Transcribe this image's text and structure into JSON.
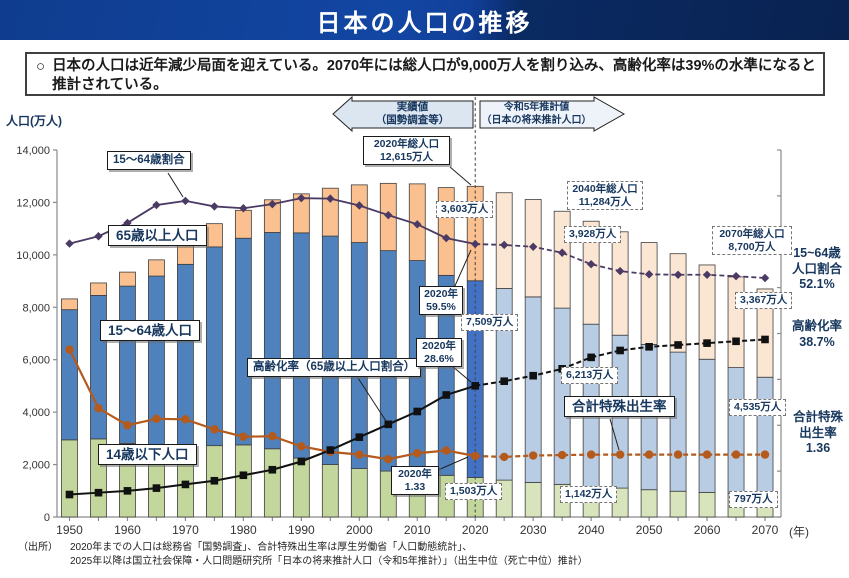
{
  "header": {
    "title": "日本の人口の推移"
  },
  "summary": {
    "bullet": "○",
    "text": "日本の人口は近年減少局面を迎えている。2070年には総人口が9,000万人を割り込み、高齢化率は39%の水準になると推計されている。"
  },
  "banners": {
    "actual": "実績値\n（国勢調査等）",
    "projection": "令和5年推計値\n（日本の将来推計人口）"
  },
  "axis_title": "人口(万人)",
  "year_unit": "(年)",
  "callouts": {
    "pop2020": "2020年総人口\n12,615万人",
    "pop2040": "2040年総人口\n11,284万人",
    "pop2070": "2070年総人口\n8,700万人",
    "ratio_label": "15～64歳割合",
    "senior_label": "65歳以上人口",
    "working_label": "15～64歳人口",
    "under14_label": "14歳以下人口",
    "aging_label": "高齢化率（65歳以上人口割合）",
    "tfr_label": "合計特殊出生率",
    "r2020_ratio": "2020年\n59.5%",
    "r2020_aging": "2020年\n28.6%",
    "r2020_tfr": "2020年\n1.33",
    "v3603": "3,603万人",
    "v3928": "3,928万人",
    "v3367": "3,367万人",
    "v7509": "7,509万人",
    "v6213": "6,213万人",
    "v4535": "4,535万人",
    "v1503": "1,503万人",
    "v1142": "1,142万人",
    "v797": "797万人"
  },
  "side_labels": {
    "ratio": "15~64歳\n人口割合\n52.1%",
    "aging": "高齢化率\n38.7%",
    "tfr": "合計特殊\n出生率\n1.36"
  },
  "footer": {
    "label": "（出所）",
    "line1": "2020年までの人口は総務省「国勢調査」、合計特殊出生率は厚生労働省「人口動態統計」、",
    "line2": "2025年以降は国立社会保障・人口問題研究所「日本の将来推計人口（令和5年推計）」（出生中位（死亡中位）推計）"
  },
  "chart_data": {
    "type": "combo-stacked-bar-line",
    "title": "日本の人口の推移",
    "ylabel": "人口(万人)",
    "ylim": [
      0,
      14000
    ],
    "y_ticks": [
      "0",
      "2,000",
      "4,000",
      "6,000",
      "8,000",
      "10,000",
      "12,000",
      "14,000"
    ],
    "x_tick_labels": [
      "1950",
      "1960",
      "1970",
      "1980",
      "1990",
      "2000",
      "2010",
      "2020",
      "2030",
      "2040",
      "2050",
      "2060",
      "2070"
    ],
    "years": [
      1950,
      1955,
      1960,
      1965,
      1970,
      1975,
      1980,
      1985,
      1990,
      1995,
      2000,
      2005,
      2010,
      2015,
      2020,
      2025,
      2030,
      2035,
      2040,
      2045,
      2050,
      2055,
      2060,
      2065,
      2070
    ],
    "projection_from_index": 14,
    "percent_scale": 175,
    "tfr_scale": 1750,
    "series": [
      {
        "name": "14歳以下人口",
        "type": "bar",
        "values": [
          2943,
          2980,
          2807,
          2517,
          2482,
          2722,
          2751,
          2603,
          2249,
          2001,
          1847,
          1752,
          1680,
          1589,
          1503,
          1407,
          1321,
          1246,
          1142,
          1103,
          1041,
          983,
          940,
          890,
          797
        ]
      },
      {
        "name": "15～64歳人口",
        "type": "bar",
        "values": [
          4966,
          5473,
          6000,
          6674,
          7157,
          7581,
          7883,
          8251,
          8590,
          8716,
          8622,
          8409,
          8103,
          7629,
          7509,
          7310,
          7076,
          6722,
          6213,
          5832,
          5540,
          5307,
          5078,
          4809,
          4535
        ]
      },
      {
        "name": "65歳以上人口",
        "type": "bar",
        "values": [
          411,
          475,
          535,
          618,
          733,
          887,
          1065,
          1247,
          1489,
          1826,
          2201,
          2567,
          2925,
          3347,
          3603,
          3653,
          3716,
          3696,
          3928,
          3945,
          3888,
          3754,
          3597,
          3460,
          3367
        ]
      },
      {
        "name": "15～64歳割合(%)",
        "type": "line",
        "axis": "percent",
        "values": [
          59.6,
          61.2,
          64.1,
          68.0,
          68.9,
          67.7,
          67.3,
          68.2,
          69.5,
          69.4,
          67.9,
          65.8,
          63.8,
          60.8,
          59.5,
          59.3,
          58.9,
          57.6,
          55.1,
          53.6,
          52.9,
          52.8,
          52.8,
          52.5,
          52.1
        ]
      },
      {
        "name": "高齢化率(%)",
        "type": "line",
        "axis": "percent",
        "values": [
          4.9,
          5.3,
          5.7,
          6.3,
          7.1,
          7.9,
          9.1,
          10.3,
          12.1,
          14.6,
          17.4,
          20.2,
          23.0,
          26.6,
          28.6,
          29.6,
          30.8,
          32.3,
          34.8,
          36.3,
          37.1,
          37.5,
          37.9,
          38.3,
          38.7
        ]
      },
      {
        "name": "合計特殊出生率",
        "type": "line",
        "axis": "tfr",
        "values": [
          3.65,
          2.37,
          2.0,
          2.14,
          2.13,
          1.91,
          1.75,
          1.76,
          1.54,
          1.42,
          1.36,
          1.26,
          1.39,
          1.45,
          1.33,
          1.31,
          1.34,
          1.35,
          1.36,
          1.36,
          1.36,
          1.36,
          1.36,
          1.36,
          1.36
        ]
      }
    ],
    "colors": {
      "hist_under14": "#c3d69b",
      "hist_working": "#4f81bd",
      "hist_senior": "#fac090",
      "y2020_under14": "#c3d69b",
      "y2020_working": "#4272c4",
      "y2020_senior": "#fac090",
      "proj_under14": "#d8e4bc",
      "proj_working": "#b8cce4",
      "proj_senior": "#fbe5d3",
      "line_ratio": "#4b3a63",
      "line_aging": "#111111",
      "line_tfr": "#b45a1d",
      "bar_border": "#3f3f3f",
      "axis": "#8a8a8a",
      "divider_2020": "#444444"
    }
  }
}
